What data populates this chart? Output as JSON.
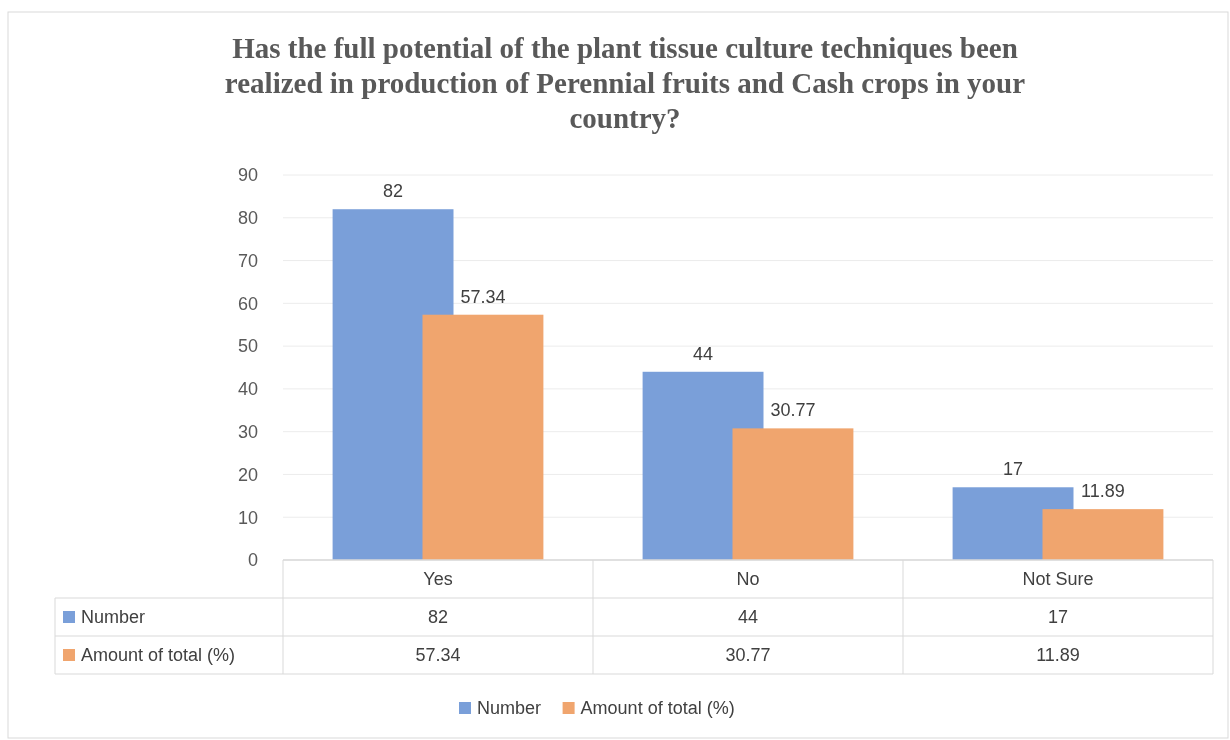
{
  "chart_data": {
    "type": "bar",
    "title": "Has the full potential of the plant tissue culture techniques been realized in production of Perennial fruits and Cash crops in your country?",
    "categories": [
      "Yes",
      "No",
      "Not Sure"
    ],
    "series": [
      {
        "name": "Number",
        "color": "#7a9fd9",
        "values": [
          82,
          44,
          17
        ],
        "value_labels": [
          "82",
          "44",
          "17"
        ]
      },
      {
        "name": "Amount of total (%)",
        "color": "#f0a56e",
        "values": [
          57.34,
          30.77,
          11.89
        ],
        "value_labels": [
          "57.34",
          "30.77",
          "11.89"
        ]
      }
    ],
    "ylim": [
      0,
      90
    ],
    "yticks": [
      0,
      10,
      20,
      30,
      40,
      50,
      60,
      70,
      80,
      90
    ],
    "grid": "y",
    "legend": "bottom",
    "data_labels": true
  }
}
